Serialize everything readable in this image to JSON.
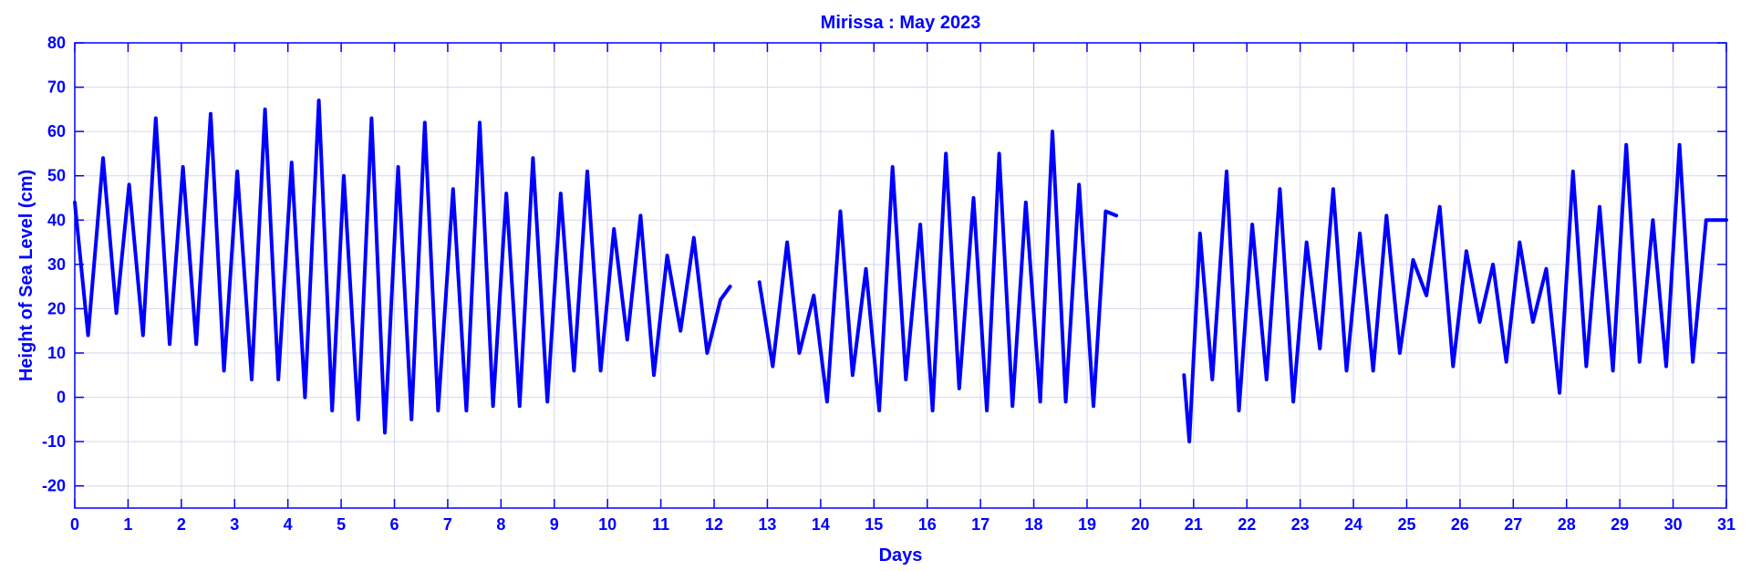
{
  "chart_data": {
    "type": "line",
    "title": "Mirissa : May 2023",
    "xlabel": "Days",
    "ylabel": "Height of Sea Level (cm)",
    "xlim": [
      0,
      31
    ],
    "ylim": [
      -25,
      80
    ],
    "grid": true,
    "color": "#0000ff",
    "x_ticks": [
      0,
      1,
      2,
      3,
      4,
      5,
      6,
      7,
      8,
      9,
      10,
      11,
      12,
      13,
      14,
      15,
      16,
      17,
      18,
      19,
      20,
      21,
      22,
      23,
      24,
      25,
      26,
      27,
      28,
      29,
      30,
      31
    ],
    "y_ticks": [
      -20,
      -10,
      0,
      10,
      20,
      30,
      40,
      50,
      60,
      70,
      80
    ],
    "series": [
      {
        "x": [
          0.0,
          0.25,
          0.53,
          0.78,
          1.02,
          1.28,
          1.52,
          1.78,
          2.03,
          2.28,
          2.55,
          2.8,
          3.05,
          3.32,
          3.57,
          3.82,
          4.07,
          4.32,
          4.58,
          4.83,
          5.05,
          5.32,
          5.57,
          5.82,
          6.07,
          6.32,
          6.57,
          6.82,
          7.1,
          7.35,
          7.6,
          7.85,
          8.1,
          8.35,
          8.6,
          8.87,
          9.12,
          9.37,
          9.62,
          9.87,
          10.12,
          10.37,
          10.62,
          10.87,
          11.12,
          11.37,
          11.62,
          11.87,
          12.12,
          12.3
        ],
        "y": [
          44,
          14,
          54,
          19,
          48,
          14,
          63,
          12,
          52,
          12,
          64,
          6,
          51,
          4,
          65,
          4,
          53,
          0,
          67,
          -3,
          50,
          -5,
          63,
          -8,
          52,
          -5,
          62,
          -3,
          47,
          -3,
          62,
          -2,
          46,
          -2,
          54,
          -1,
          46,
          6,
          51,
          6,
          38,
          13,
          41,
          5,
          32,
          15,
          36,
          10,
          22,
          25
        ]
      },
      {
        "x": [
          12.85,
          13.1,
          13.37,
          13.6,
          13.87,
          14.12,
          14.37,
          14.6,
          14.85,
          15.1,
          15.35,
          15.6,
          15.87,
          16.1,
          16.35,
          16.6,
          16.87,
          17.12,
          17.35,
          17.6,
          17.85,
          18.12,
          18.35,
          18.6,
          18.85,
          19.12,
          19.35,
          19.55
        ],
        "y": [
          26,
          7,
          35,
          10,
          23,
          -1,
          42,
          5,
          29,
          -3,
          52,
          4,
          39,
          -3,
          55,
          2,
          45,
          -3,
          55,
          -2,
          44,
          -1,
          60,
          -1,
          48,
          -2,
          42,
          41
        ]
      },
      {
        "x": [
          20.82,
          20.92,
          21.12,
          21.35,
          21.62,
          21.85,
          22.1,
          22.37,
          22.62,
          22.87,
          23.12,
          23.37,
          23.62,
          23.87,
          24.12,
          24.37,
          24.62,
          24.87,
          25.12,
          25.37,
          25.62,
          25.87,
          26.12,
          26.37,
          26.62,
          26.87,
          27.12,
          27.37,
          27.62,
          27.87,
          28.12,
          28.37,
          28.62,
          28.87,
          29.12,
          29.37,
          29.62,
          29.87,
          30.12,
          30.37,
          30.62,
          30.87,
          31.0
        ],
        "y": [
          5,
          -10,
          37,
          4,
          51,
          -3,
          39,
          4,
          47,
          -1,
          35,
          11,
          47,
          6,
          37,
          6,
          41,
          10,
          31,
          23,
          43,
          7,
          33,
          17,
          30,
          8,
          35,
          17,
          29,
          1,
          51,
          7,
          43,
          6,
          57,
          8,
          40,
          7,
          57,
          8,
          40,
          40,
          40
        ]
      }
    ]
  }
}
